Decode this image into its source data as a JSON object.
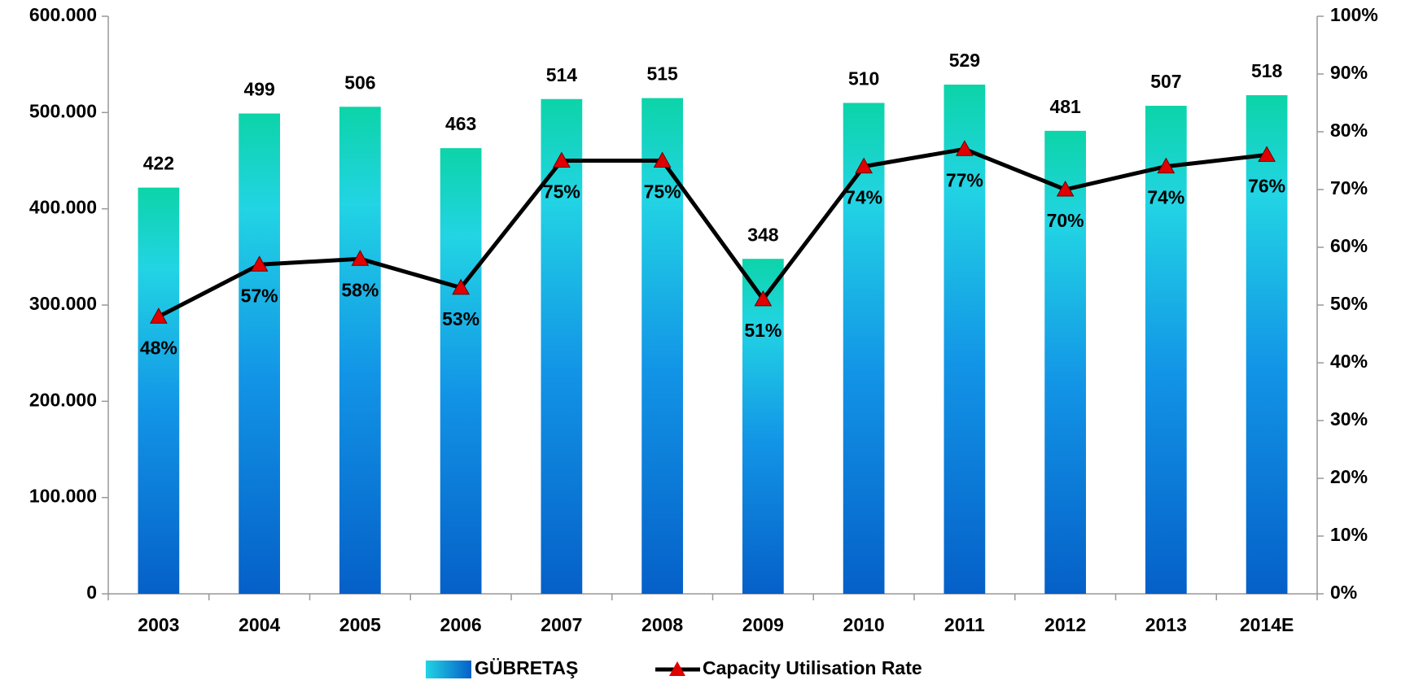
{
  "chart_data": {
    "type": "bar_line",
    "categories": [
      "2003",
      "2004",
      "2005",
      "2006",
      "2007",
      "2008",
      "2009",
      "2010",
      "2011",
      "2012",
      "2013",
      "2014E"
    ],
    "series": [
      {
        "name": "GÜBRETAŞ",
        "color": "#1bc8e0",
        "type": "bar",
        "values": [
          422000,
          499000,
          506000,
          463000,
          514000,
          515000,
          348000,
          510000,
          529000,
          481000,
          507000,
          518000
        ],
        "value_labels": [
          "422",
          "499",
          "506",
          "463",
          "514",
          "515",
          "348",
          "510",
          "529",
          "481",
          "507",
          "518"
        ]
      },
      {
        "name": "Capacity Utilisation Rate",
        "color": "#000000",
        "marker_color": "#e00000",
        "type": "line",
        "axis": "y2",
        "values": [
          48,
          57,
          58,
          53,
          75,
          75,
          51,
          74,
          77,
          70,
          74,
          76
        ],
        "value_labels": [
          "48%",
          "57%",
          "58%",
          "53%",
          "75%",
          "75%",
          "51%",
          "74%",
          "77%",
          "70%",
          "74%",
          "76%"
        ]
      }
    ],
    "ylim": [
      0,
      600000
    ],
    "yticks": [
      0,
      {
        "value": 100000,
        "label": "100.000"
      },
      {
        "value": 200000,
        "label": "200.000"
      },
      {
        "value": 300000,
        "label": "300.000"
      },
      {
        "value": 400000,
        "label": "400.000"
      },
      {
        "value": 500000,
        "label": "500.000"
      },
      {
        "value": 600000,
        "label": "600.000"
      }
    ],
    "y2lim": [
      0,
      100
    ],
    "y2ticks": [
      {
        "value": 0,
        "label": "0%"
      },
      {
        "value": 10,
        "label": "10%"
      },
      {
        "value": 20,
        "label": "20%"
      },
      {
        "value": 30,
        "label": "30%"
      },
      {
        "value": 40,
        "label": "40%"
      },
      {
        "value": 50,
        "label": "50%"
      },
      {
        "value": 60,
        "label": "60%"
      },
      {
        "value": 70,
        "label": "70%"
      },
      {
        "value": 80,
        "label": "80%"
      },
      {
        "value": 90,
        "label": "90%"
      },
      {
        "value": 100,
        "label": "100%"
      }
    ],
    "legend": "bottom"
  }
}
